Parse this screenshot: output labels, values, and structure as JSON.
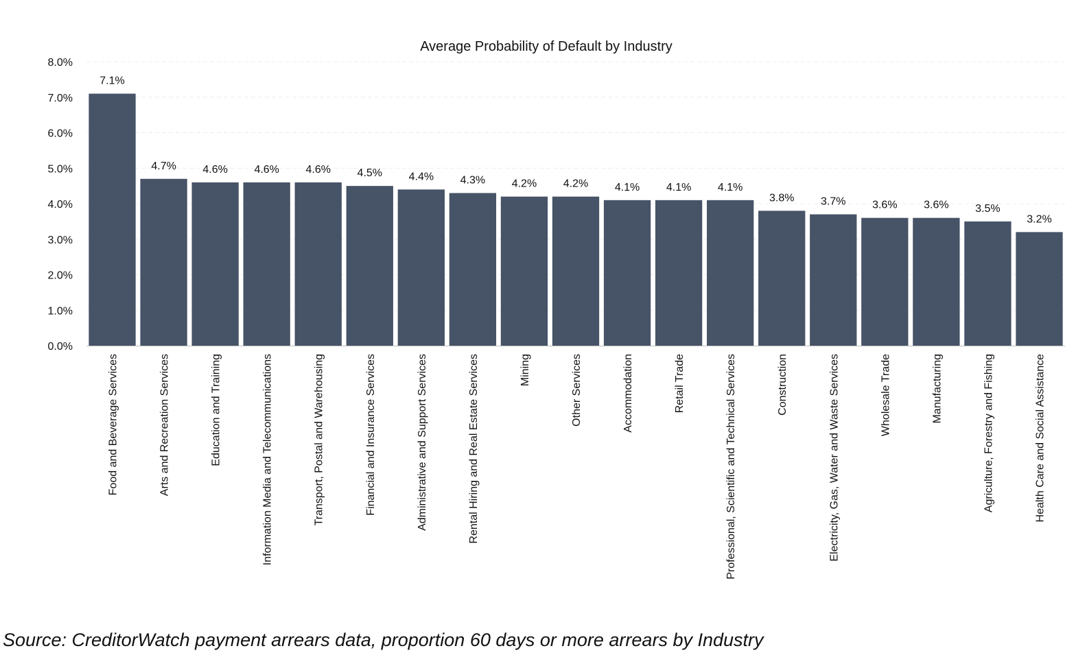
{
  "chart_data": {
    "type": "bar",
    "title": "Average Probability of Default by Industry",
    "categories": [
      "Food and Beverage Services",
      "Arts and Recreation Services",
      "Education and Training",
      "Information Media and Telecommunications",
      "Transport, Postal and Warehousing",
      "Financial and Insurance Services",
      "Administrative and Support Services",
      "Rental Hiring and Real Estate Services",
      "Mining",
      "Other Services",
      "Accommodation",
      "Retail Trade",
      "Professional, Scientific and Technical Services",
      "Construction",
      "Electricity, Gas, Water and Waste Services",
      "Wholesale Trade",
      "Manufacturing",
      "Agriculture, Forestry and Fishing",
      "Health Care and Social Assistance"
    ],
    "values": [
      7.1,
      4.7,
      4.6,
      4.6,
      4.6,
      4.5,
      4.4,
      4.3,
      4.2,
      4.2,
      4.1,
      4.1,
      4.1,
      3.8,
      3.7,
      3.6,
      3.6,
      3.5,
      3.2
    ],
    "value_labels": [
      "7.1%",
      "4.7%",
      "4.6%",
      "4.6%",
      "4.6%",
      "4.5%",
      "4.4%",
      "4.3%",
      "4.2%",
      "4.2%",
      "4.1%",
      "4.1%",
      "4.1%",
      "3.8%",
      "3.7%",
      "3.6%",
      "3.6%",
      "3.5%",
      "3.2%"
    ],
    "yticks": [
      "0.0%",
      "1.0%",
      "2.0%",
      "3.0%",
      "4.0%",
      "5.0%",
      "6.0%",
      "7.0%",
      "8.0%"
    ],
    "ylim": [
      0,
      8
    ],
    "xlabel": "",
    "ylabel": "",
    "grid": true,
    "bar_color": "#475366"
  },
  "source_note": "Source: CreditorWatch payment arrears data, proportion 60 days or more arrears by Industry"
}
